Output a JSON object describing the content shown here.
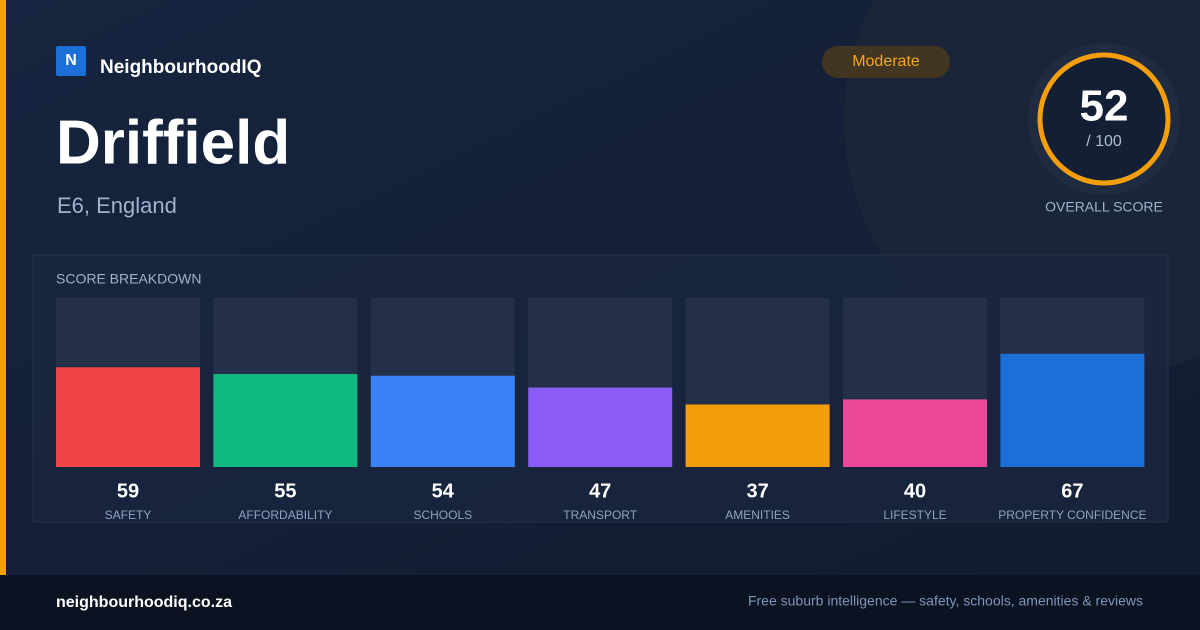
{
  "brand": {
    "logo_letter": "N",
    "name": "NeighbourhoodIQ"
  },
  "header": {
    "title": "Driffield",
    "location": "E6, England",
    "badge": "Moderate"
  },
  "overall": {
    "score": 52,
    "max": {
      "value": 100,
      "label": "/ 100"
    },
    "label": "OVERALL SCORE"
  },
  "breakdown": {
    "title": "SCORE BREAKDOWN",
    "categories": [
      "SAFETY",
      "AFFORDABILITY",
      "SCHOOLS",
      "TRANSPORT",
      "AMENITIES",
      "LIFESTYLE",
      "PROPERTY CONFIDENCE"
    ],
    "values": [
      59,
      55,
      54,
      47,
      37,
      40,
      67
    ],
    "colors": [
      "#ef4444",
      "#10b981",
      "#3b82f6",
      "#8b5cf6",
      "#f59e0b",
      "#ec4899",
      "#1d6fd8"
    ]
  },
  "footer": {
    "site": "neighbourhoodiq.co.za",
    "tagline": "Free suburb intelligence — safety, schools, amenities & reviews"
  }
}
